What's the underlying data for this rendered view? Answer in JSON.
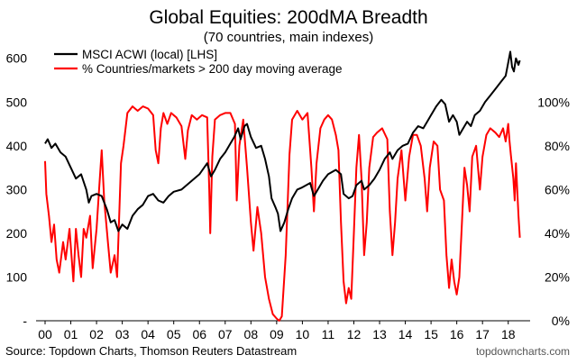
{
  "chart_data": {
    "type": "line",
    "title": "Global Equities: 200dMA Breadth",
    "subtitle": "(70 countries, main indexes)",
    "source": "Source: Topdown Charts, Thomson Reuters Datastream",
    "brand": "topdowncharts.com",
    "x_ticks": [
      "00",
      "01",
      "02",
      "03",
      "04",
      "05",
      "06",
      "07",
      "08",
      "09",
      "10",
      "11",
      "12",
      "13",
      "14",
      "15",
      "16",
      "17",
      "18"
    ],
    "x_range": [
      2000.0,
      2018.5
    ],
    "y_left": {
      "ticks": [
        "600",
        "500",
        "400",
        "300",
        "200",
        "100",
        "-"
      ],
      "tick_values": [
        600,
        500,
        400,
        300,
        200,
        100,
        0
      ],
      "range": [
        0,
        620
      ]
    },
    "y_right": {
      "ticks": [
        "100%",
        "80%",
        "60%",
        "40%",
        "20%",
        "0%"
      ],
      "tick_values": [
        100,
        80,
        60,
        40,
        20,
        0
      ],
      "range": [
        0,
        124
      ]
    },
    "legend_position": "top-left",
    "grid": false,
    "series": [
      {
        "name": "MSCI ACWI (local) [LHS]",
        "axis": "left",
        "color": "#000000",
        "points": [
          [
            2000.0,
            405
          ],
          [
            2000.1,
            415
          ],
          [
            2000.25,
            395
          ],
          [
            2000.4,
            405
          ],
          [
            2000.6,
            385
          ],
          [
            2000.8,
            375
          ],
          [
            2001.0,
            350
          ],
          [
            2001.2,
            325
          ],
          [
            2001.4,
            335
          ],
          [
            2001.6,
            300
          ],
          [
            2001.7,
            270
          ],
          [
            2001.8,
            285
          ],
          [
            2002.0,
            290
          ],
          [
            2002.2,
            285
          ],
          [
            2002.4,
            255
          ],
          [
            2002.55,
            225
          ],
          [
            2002.7,
            230
          ],
          [
            2002.85,
            205
          ],
          [
            2003.0,
            220
          ],
          [
            2003.2,
            210
          ],
          [
            2003.4,
            240
          ],
          [
            2003.6,
            255
          ],
          [
            2003.8,
            265
          ],
          [
            2004.0,
            285
          ],
          [
            2004.2,
            290
          ],
          [
            2004.4,
            275
          ],
          [
            2004.6,
            270
          ],
          [
            2004.8,
            285
          ],
          [
            2005.0,
            295
          ],
          [
            2005.3,
            300
          ],
          [
            2005.6,
            315
          ],
          [
            2005.8,
            325
          ],
          [
            2006.0,
            335
          ],
          [
            2006.3,
            360
          ],
          [
            2006.45,
            330
          ],
          [
            2006.6,
            345
          ],
          [
            2006.8,
            370
          ],
          [
            2007.0,
            385
          ],
          [
            2007.2,
            405
          ],
          [
            2007.35,
            420
          ],
          [
            2007.5,
            440
          ],
          [
            2007.6,
            415
          ],
          [
            2007.75,
            445
          ],
          [
            2007.85,
            450
          ],
          [
            2008.0,
            420
          ],
          [
            2008.2,
            395
          ],
          [
            2008.4,
            400
          ],
          [
            2008.55,
            370
          ],
          [
            2008.7,
            330
          ],
          [
            2008.8,
            280
          ],
          [
            2008.95,
            260
          ],
          [
            2009.05,
            245
          ],
          [
            2009.15,
            205
          ],
          [
            2009.3,
            225
          ],
          [
            2009.45,
            255
          ],
          [
            2009.6,
            280
          ],
          [
            2009.8,
            300
          ],
          [
            2010.0,
            305
          ],
          [
            2010.3,
            315
          ],
          [
            2010.45,
            285
          ],
          [
            2010.6,
            300
          ],
          [
            2010.8,
            320
          ],
          [
            2011.0,
            335
          ],
          [
            2011.3,
            345
          ],
          [
            2011.5,
            335
          ],
          [
            2011.6,
            290
          ],
          [
            2011.8,
            280
          ],
          [
            2011.95,
            285
          ],
          [
            2012.1,
            310
          ],
          [
            2012.3,
            320
          ],
          [
            2012.4,
            300
          ],
          [
            2012.6,
            310
          ],
          [
            2012.8,
            325
          ],
          [
            2013.0,
            345
          ],
          [
            2013.2,
            370
          ],
          [
            2013.4,
            385
          ],
          [
            2013.5,
            370
          ],
          [
            2013.7,
            390
          ],
          [
            2013.9,
            400
          ],
          [
            2014.1,
            405
          ],
          [
            2014.3,
            430
          ],
          [
            2014.5,
            445
          ],
          [
            2014.7,
            440
          ],
          [
            2014.85,
            455
          ],
          [
            2015.0,
            470
          ],
          [
            2015.2,
            490
          ],
          [
            2015.4,
            505
          ],
          [
            2015.55,
            495
          ],
          [
            2015.7,
            455
          ],
          [
            2015.85,
            470
          ],
          [
            2016.0,
            455
          ],
          [
            2016.1,
            425
          ],
          [
            2016.25,
            440
          ],
          [
            2016.4,
            455
          ],
          [
            2016.55,
            445
          ],
          [
            2016.7,
            470
          ],
          [
            2016.9,
            480
          ],
          [
            2017.1,
            500
          ],
          [
            2017.3,
            515
          ],
          [
            2017.5,
            530
          ],
          [
            2017.7,
            545
          ],
          [
            2017.9,
            560
          ],
          [
            2018.0,
            590
          ],
          [
            2018.08,
            615
          ],
          [
            2018.15,
            580
          ],
          [
            2018.22,
            570
          ],
          [
            2018.3,
            600
          ],
          [
            2018.4,
            585
          ],
          [
            2018.45,
            595
          ]
        ]
      },
      {
        "name": "% Countries/markets > 200 day moving average",
        "axis": "right",
        "color": "#ff0000",
        "points": [
          [
            2000.0,
            73
          ],
          [
            2000.05,
            58
          ],
          [
            2000.15,
            48
          ],
          [
            2000.25,
            36
          ],
          [
            2000.35,
            44
          ],
          [
            2000.45,
            28
          ],
          [
            2000.55,
            22
          ],
          [
            2000.7,
            36
          ],
          [
            2000.8,
            28
          ],
          [
            2000.95,
            42
          ],
          [
            2001.1,
            18
          ],
          [
            2001.2,
            42
          ],
          [
            2001.3,
            30
          ],
          [
            2001.4,
            20
          ],
          [
            2001.5,
            42
          ],
          [
            2001.6,
            38
          ],
          [
            2001.75,
            48
          ],
          [
            2001.85,
            24
          ],
          [
            2002.0,
            42
          ],
          [
            2002.1,
            60
          ],
          [
            2002.2,
            78
          ],
          [
            2002.3,
            55
          ],
          [
            2002.45,
            35
          ],
          [
            2002.55,
            22
          ],
          [
            2002.7,
            30
          ],
          [
            2002.8,
            20
          ],
          [
            2002.95,
            72
          ],
          [
            2003.05,
            80
          ],
          [
            2003.2,
            95
          ],
          [
            2003.4,
            98
          ],
          [
            2003.6,
            96
          ],
          [
            2003.8,
            98
          ],
          [
            2004.0,
            97
          ],
          [
            2004.2,
            94
          ],
          [
            2004.3,
            78
          ],
          [
            2004.4,
            72
          ],
          [
            2004.5,
            88
          ],
          [
            2004.6,
            95
          ],
          [
            2004.75,
            90
          ],
          [
            2004.9,
            95
          ],
          [
            2005.1,
            93
          ],
          [
            2005.3,
            89
          ],
          [
            2005.45,
            74
          ],
          [
            2005.55,
            87
          ],
          [
            2005.7,
            94
          ],
          [
            2005.9,
            92
          ],
          [
            2006.1,
            94
          ],
          [
            2006.3,
            93
          ],
          [
            2006.38,
            60
          ],
          [
            2006.42,
            40
          ],
          [
            2006.5,
            75
          ],
          [
            2006.6,
            92
          ],
          [
            2006.8,
            94
          ],
          [
            2007.0,
            95
          ],
          [
            2007.2,
            95
          ],
          [
            2007.38,
            90
          ],
          [
            2007.45,
            55
          ],
          [
            2007.55,
            80
          ],
          [
            2007.7,
            92
          ],
          [
            2007.85,
            70
          ],
          [
            2008.0,
            45
          ],
          [
            2008.1,
            32
          ],
          [
            2008.25,
            52
          ],
          [
            2008.4,
            40
          ],
          [
            2008.55,
            20
          ],
          [
            2008.7,
            10
          ],
          [
            2008.85,
            3
          ],
          [
            2009.0,
            1
          ],
          [
            2009.1,
            0
          ],
          [
            2009.2,
            2
          ],
          [
            2009.35,
            30
          ],
          [
            2009.5,
            76
          ],
          [
            2009.6,
            92
          ],
          [
            2009.8,
            96
          ],
          [
            2010.0,
            92
          ],
          [
            2010.2,
            95
          ],
          [
            2010.35,
            70
          ],
          [
            2010.45,
            50
          ],
          [
            2010.55,
            72
          ],
          [
            2010.7,
            88
          ],
          [
            2010.85,
            92
          ],
          [
            2011.0,
            94
          ],
          [
            2011.15,
            92
          ],
          [
            2011.3,
            85
          ],
          [
            2011.4,
            78
          ],
          [
            2011.5,
            45
          ],
          [
            2011.6,
            18
          ],
          [
            2011.7,
            8
          ],
          [
            2011.8,
            15
          ],
          [
            2011.9,
            10
          ],
          [
            2012.0,
            40
          ],
          [
            2012.1,
            70
          ],
          [
            2012.2,
            85
          ],
          [
            2012.3,
            65
          ],
          [
            2012.4,
            30
          ],
          [
            2012.5,
            45
          ],
          [
            2012.6,
            70
          ],
          [
            2012.75,
            84
          ],
          [
            2012.9,
            86
          ],
          [
            2013.1,
            88
          ],
          [
            2013.3,
            83
          ],
          [
            2013.4,
            50
          ],
          [
            2013.5,
            30
          ],
          [
            2013.6,
            45
          ],
          [
            2013.7,
            65
          ],
          [
            2013.85,
            78
          ],
          [
            2014.0,
            55
          ],
          [
            2014.15,
            75
          ],
          [
            2014.3,
            85
          ],
          [
            2014.45,
            85
          ],
          [
            2014.6,
            80
          ],
          [
            2014.75,
            65
          ],
          [
            2014.85,
            50
          ],
          [
            2014.95,
            70
          ],
          [
            2015.1,
            82
          ],
          [
            2015.25,
            80
          ],
          [
            2015.35,
            60
          ],
          [
            2015.5,
            55
          ],
          [
            2015.6,
            30
          ],
          [
            2015.7,
            15
          ],
          [
            2015.8,
            28
          ],
          [
            2015.9,
            18
          ],
          [
            2016.0,
            12
          ],
          [
            2016.1,
            20
          ],
          [
            2016.2,
            45
          ],
          [
            2016.3,
            70
          ],
          [
            2016.4,
            62
          ],
          [
            2016.5,
            50
          ],
          [
            2016.6,
            75
          ],
          [
            2016.75,
            80
          ],
          [
            2016.9,
            60
          ],
          [
            2017.0,
            75
          ],
          [
            2017.15,
            85
          ],
          [
            2017.3,
            88
          ],
          [
            2017.5,
            86
          ],
          [
            2017.65,
            84
          ],
          [
            2017.8,
            88
          ],
          [
            2017.9,
            82
          ],
          [
            2018.0,
            90
          ],
          [
            2018.05,
            82
          ],
          [
            2018.1,
            76
          ],
          [
            2018.2,
            65
          ],
          [
            2018.25,
            55
          ],
          [
            2018.3,
            72
          ],
          [
            2018.35,
            60
          ],
          [
            2018.4,
            48
          ],
          [
            2018.45,
            38
          ]
        ]
      }
    ]
  }
}
